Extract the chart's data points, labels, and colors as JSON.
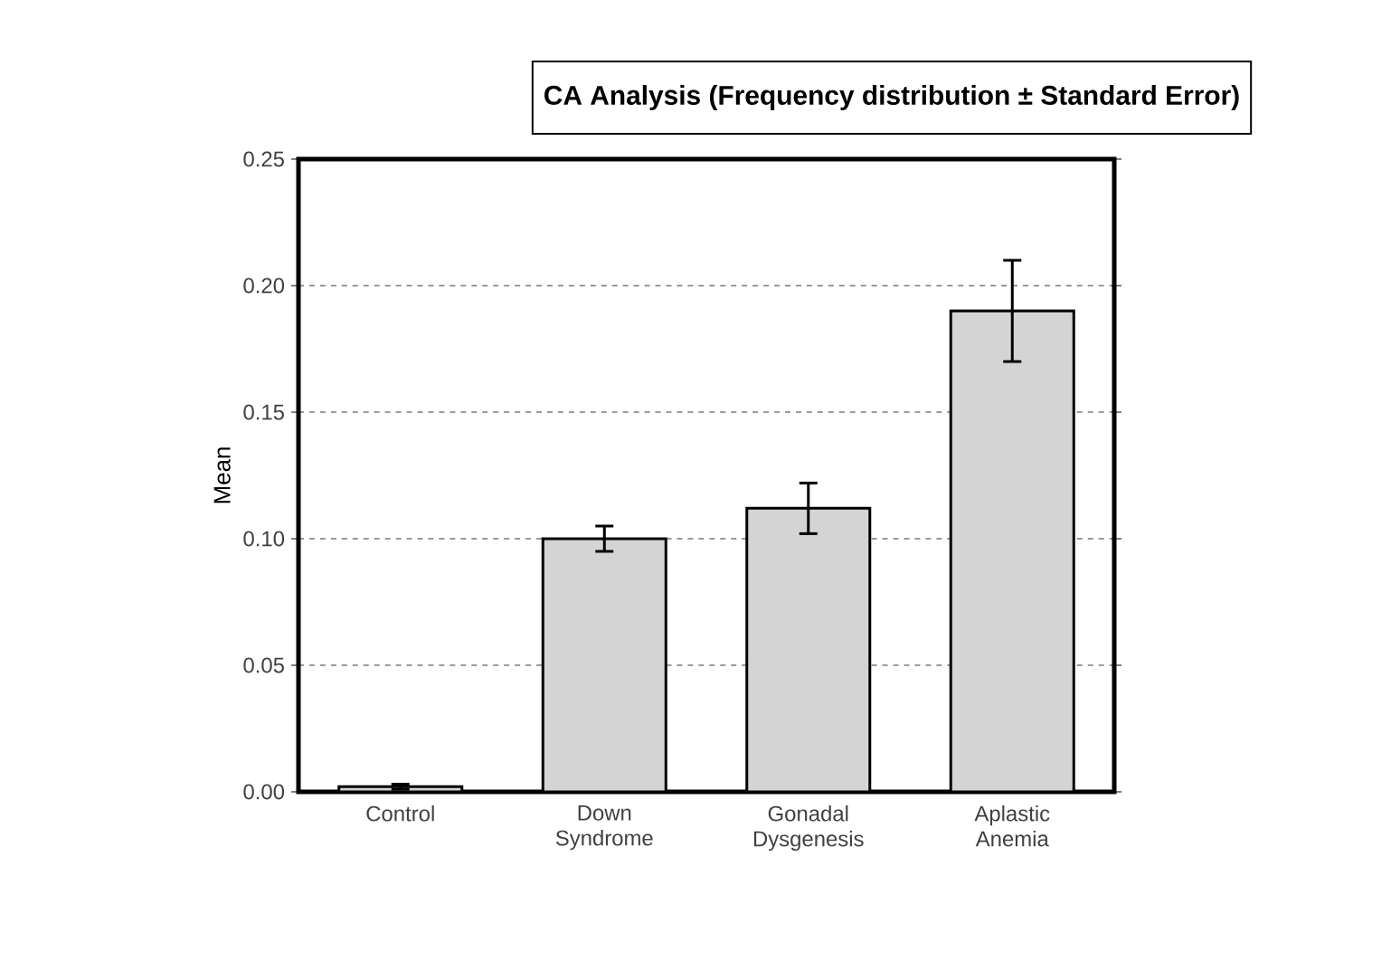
{
  "chart_data": {
    "type": "bar",
    "title": "CA Analysis (Frequency distribution ± Standard Error)",
    "ylabel": "Mean",
    "categories": [
      "Control",
      "Down Syndrome",
      "Gonadal Dysgenesis",
      "Aplastic Anemia"
    ],
    "values": [
      0.002,
      0.1,
      0.112,
      0.19
    ],
    "errors": [
      0.001,
      0.005,
      0.01,
      0.02
    ],
    "color": "#d4d4d4",
    "ylim": [
      0,
      0.25
    ],
    "yticks": [
      {
        "value": 0,
        "label": "0.00"
      },
      {
        "value": 0.05,
        "label": "0.05"
      },
      {
        "value": 0.1,
        "label": "0.10"
      },
      {
        "value": 0.15,
        "label": "0.15"
      },
      {
        "value": 0.2,
        "label": "0.20"
      },
      {
        "value": 0.25,
        "label": "0.25"
      }
    ],
    "grid": "y"
  }
}
